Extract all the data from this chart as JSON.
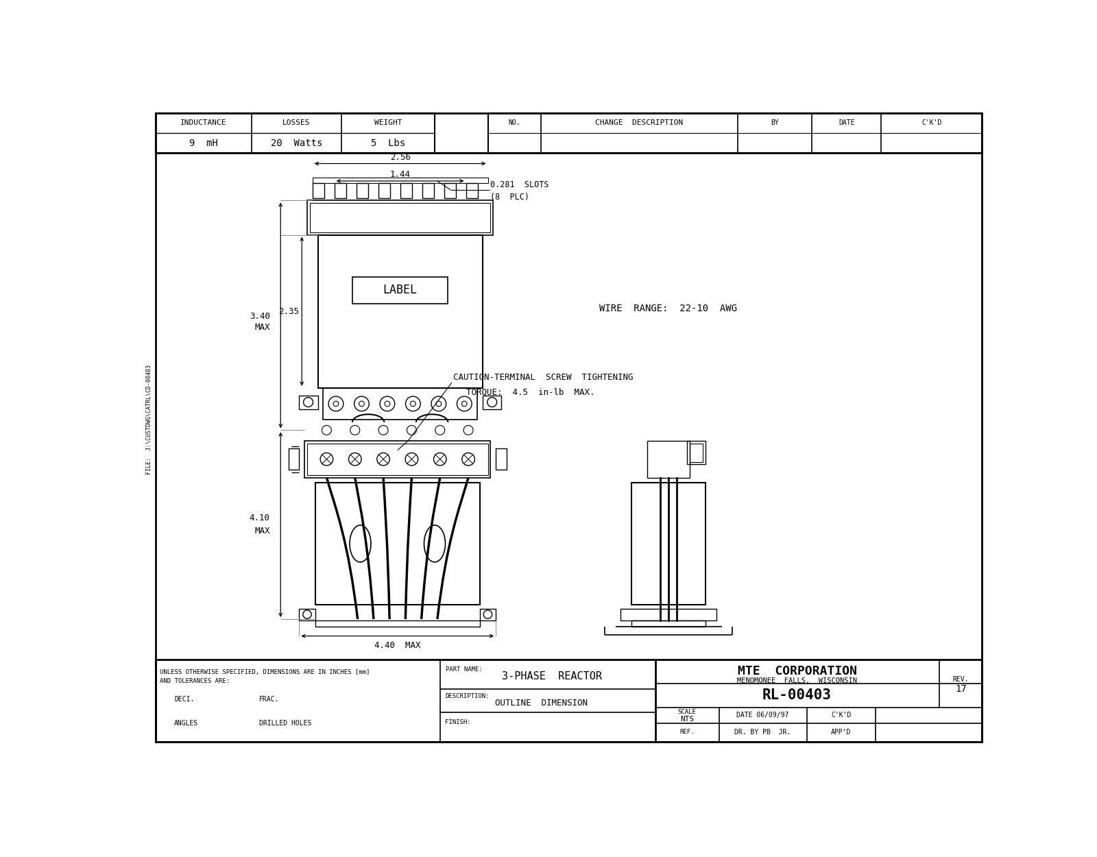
{
  "bg_color": "#ffffff",
  "line_color": "#000000",
  "header_table": {
    "inductance_label": "INDUCTANCE",
    "losses_label": "LOSSES",
    "weight_label": "WEIGHT",
    "inductance_val": "9  mH",
    "losses_val": "20  Watts",
    "weight_val": "5  Lbs",
    "no_label": "NO.",
    "change_label": "CHANGE  DESCRIPTION",
    "by_label": "BY",
    "date_label": "DATE",
    "ckd_label": "C'K'D"
  },
  "annotations": {
    "dim_256": "2.56",
    "dim_144": "1.44",
    "slots_text": "0.281  SLOTS",
    "slots_plc": "(8  PLC)",
    "dim_340_max": "3.40",
    "dim_340_max2": "MAX",
    "dim_235": "2.35",
    "wire_range": "WIRE  RANGE:  22-10  AWG",
    "caution_line1": "CAUTION-TERMINAL  SCREW  TIGHTENING",
    "caution_line2": "TORQUE:  4.5  in-lb  MAX.",
    "dim_410_max": "4.10",
    "dim_410_max2": "MAX",
    "dim_440_max": "4.40  MAX",
    "label_text": "LABEL"
  },
  "title_block": {
    "company": "MTE  CORPORATION",
    "city": "MENOMONEE  FALLS,  WISCONSIN",
    "part_number": "RL-00403",
    "rev_label": "REV.",
    "rev_num": "17",
    "scale_label": "SCALE",
    "scale_val": "NTS",
    "date_label": "DATE",
    "date_val": "06/09/97",
    "ckd_label": "C'K'D",
    "ref_label": "REF.",
    "dr_by_label": "DR. BY",
    "dr_by_val": "PB  JR.",
    "appd_label": "APP'D",
    "part_name_label": "PART NAME:",
    "part_name_val": "3-PHASE  REACTOR",
    "desc_label": "DESCRIPTION:",
    "desc_val": "OUTLINE  DIMENSION",
    "finish_label": "FINISH:",
    "unless_text": "UNLESS OTHERWISE SPECIFIED, DIMENSIONS ARE IN INCHES [mm]",
    "tolerances_text": "AND TOLERANCES ARE:",
    "deci_label": "DECI.",
    "frac_label": "FRAC.",
    "angles_label": "ANGLES",
    "drilled_label": "DRILLED HOLES"
  },
  "file_text": "FILE:  J:\\CUSTDWG\\CATRL\\CD-00403"
}
